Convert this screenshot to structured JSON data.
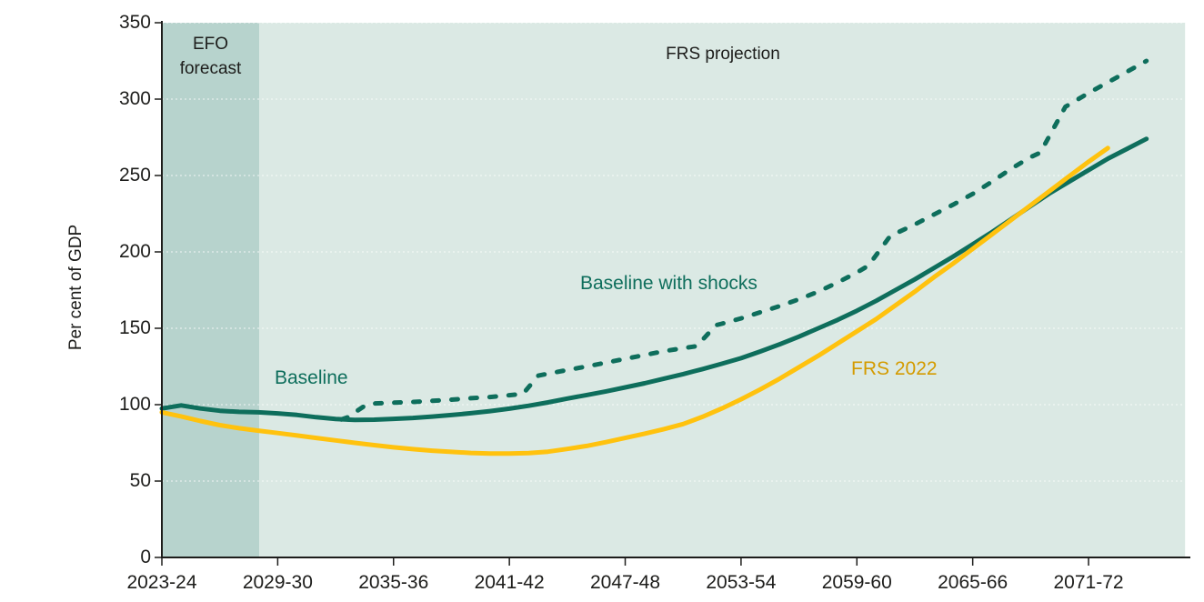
{
  "chart_data": {
    "type": "line",
    "title": "",
    "ylabel": "Per cent of GDP",
    "xlabel": "",
    "ylim": [
      0,
      350
    ],
    "y_ticks": [
      0,
      50,
      100,
      150,
      200,
      250,
      300,
      350
    ],
    "x_ticks": [
      {
        "year": 2023,
        "label": "2023-24"
      },
      {
        "year": 2029,
        "label": "2029-30"
      },
      {
        "year": 2035,
        "label": "2035-36"
      },
      {
        "year": 2041,
        "label": "2041-42"
      },
      {
        "year": 2047,
        "label": "2047-48"
      },
      {
        "year": 2053,
        "label": "2053-54"
      },
      {
        "year": 2059,
        "label": "2059-60"
      },
      {
        "year": 2065,
        "label": "2065-66"
      },
      {
        "year": 2071,
        "label": "2071-72"
      }
    ],
    "grid": "horizontal-dotted-white",
    "legend_position": "inline-labels",
    "regions": [
      {
        "name": "EFO forecast",
        "label_lines": [
          "EFO",
          "forecast"
        ],
        "start_year": 2023,
        "end_year": 2028.05,
        "color": "#b7d3cd"
      },
      {
        "name": "FRS projection",
        "label": "FRS projection",
        "start_year": 2028.05,
        "end_year": 2076,
        "color": "#dbe9e4"
      }
    ],
    "series": [
      {
        "name": "Baseline",
        "style": "solid",
        "color": "#0e6e5c",
        "points": [
          [
            2023,
            97.5
          ],
          [
            2024,
            99.5
          ],
          [
            2025,
            97.5
          ],
          [
            2026,
            96
          ],
          [
            2027,
            95.3
          ],
          [
            2028,
            95
          ],
          [
            2029,
            94.3
          ],
          [
            2030,
            93.3
          ],
          [
            2031,
            91.8
          ],
          [
            2032,
            90.6
          ],
          [
            2033,
            90
          ],
          [
            2034,
            90.2
          ],
          [
            2035,
            90.7
          ],
          [
            2036,
            91.3
          ],
          [
            2037,
            92.2
          ],
          [
            2038,
            93.2
          ],
          [
            2039,
            94.4
          ],
          [
            2040,
            95.8
          ],
          [
            2041,
            97.4
          ],
          [
            2042,
            99.3
          ],
          [
            2043,
            101.5
          ],
          [
            2044,
            104
          ],
          [
            2045,
            106.3
          ],
          [
            2046,
            108.7
          ],
          [
            2047,
            111.3
          ],
          [
            2048,
            114
          ],
          [
            2049,
            117
          ],
          [
            2050,
            120
          ],
          [
            2051,
            123.3
          ],
          [
            2052,
            126.8
          ],
          [
            2053,
            130.4
          ],
          [
            2054,
            134.8
          ],
          [
            2055,
            139.5
          ],
          [
            2056,
            144.5
          ],
          [
            2057,
            150
          ],
          [
            2058,
            155.5
          ],
          [
            2059,
            161.5
          ],
          [
            2060,
            168
          ],
          [
            2061,
            175
          ],
          [
            2062,
            182
          ],
          [
            2063,
            189.5
          ],
          [
            2064,
            197
          ],
          [
            2065,
            205
          ],
          [
            2066,
            213
          ],
          [
            2067,
            221.5
          ],
          [
            2068,
            230
          ],
          [
            2069,
            238.5
          ],
          [
            2070,
            246
          ],
          [
            2071,
            253.5
          ],
          [
            2072,
            261
          ],
          [
            2073,
            267.5
          ],
          [
            2074,
            274
          ]
        ]
      },
      {
        "name": "Baseline with shocks",
        "style": "dashed",
        "color": "#0e6e5c",
        "points": [
          [
            2032.3,
            90.3
          ],
          [
            2032.7,
            92
          ],
          [
            2033,
            95
          ],
          [
            2033.6,
            100
          ],
          [
            2034,
            100.8
          ],
          [
            2035,
            101.3
          ],
          [
            2036,
            101.8
          ],
          [
            2037,
            102.5
          ],
          [
            2038,
            103.3
          ],
          [
            2039,
            104.2
          ],
          [
            2040,
            105
          ],
          [
            2041,
            106.2
          ],
          [
            2041.7,
            107
          ],
          [
            2042.5,
            119
          ],
          [
            2043,
            120.3
          ],
          [
            2044,
            122.7
          ],
          [
            2045,
            125
          ],
          [
            2046,
            127.5
          ],
          [
            2047,
            130
          ],
          [
            2048,
            132.5
          ],
          [
            2049,
            135
          ],
          [
            2050,
            137
          ],
          [
            2050.7,
            138.3
          ],
          [
            2051.7,
            152
          ],
          [
            2052,
            153
          ],
          [
            2053,
            156.5
          ],
          [
            2054,
            160.5
          ],
          [
            2055,
            164.5
          ],
          [
            2056,
            169
          ],
          [
            2057,
            174
          ],
          [
            2058,
            180
          ],
          [
            2059,
            186.5
          ],
          [
            2059.6,
            191
          ],
          [
            2060.7,
            210
          ],
          [
            2061,
            212
          ],
          [
            2062,
            218
          ],
          [
            2063,
            224.5
          ],
          [
            2064,
            231
          ],
          [
            2065,
            238
          ],
          [
            2066,
            246
          ],
          [
            2067,
            254.5
          ],
          [
            2068,
            262
          ],
          [
            2068.5,
            265
          ],
          [
            2069.8,
            295
          ],
          [
            2070,
            296.5
          ],
          [
            2071,
            304
          ],
          [
            2072,
            311
          ],
          [
            2073,
            318
          ],
          [
            2074,
            325
          ]
        ]
      },
      {
        "name": "FRS 2022",
        "style": "solid",
        "color": "#ffc20e",
        "points": [
          [
            2023,
            95
          ],
          [
            2024,
            92.3
          ],
          [
            2025,
            89.3
          ],
          [
            2026,
            86.6
          ],
          [
            2027,
            84.6
          ],
          [
            2028,
            83
          ],
          [
            2029,
            81.4
          ],
          [
            2030,
            79.8
          ],
          [
            2031,
            78.2
          ],
          [
            2032,
            76.6
          ],
          [
            2033,
            75
          ],
          [
            2034,
            73.5
          ],
          [
            2035,
            72.1
          ],
          [
            2036,
            70.9
          ],
          [
            2037,
            69.9
          ],
          [
            2038,
            69.1
          ],
          [
            2039,
            68.4
          ],
          [
            2040,
            68
          ],
          [
            2041,
            68
          ],
          [
            2042,
            68.3
          ],
          [
            2043,
            69.2
          ],
          [
            2044,
            71
          ],
          [
            2045,
            73
          ],
          [
            2046,
            75.5
          ],
          [
            2047,
            78.2
          ],
          [
            2048,
            81
          ],
          [
            2049,
            84
          ],
          [
            2050,
            87.3
          ],
          [
            2051,
            92
          ],
          [
            2052,
            97.5
          ],
          [
            2053,
            103.5
          ],
          [
            2054,
            110
          ],
          [
            2055,
            117
          ],
          [
            2056,
            124.5
          ],
          [
            2057,
            132
          ],
          [
            2058,
            140
          ],
          [
            2059,
            148
          ],
          [
            2060,
            156
          ],
          [
            2061,
            165
          ],
          [
            2062,
            174
          ],
          [
            2063,
            183.5
          ],
          [
            2064,
            192.5
          ],
          [
            2065,
            202
          ],
          [
            2066,
            211.5
          ],
          [
            2067,
            221
          ],
          [
            2068,
            230.5
          ],
          [
            2069,
            240
          ],
          [
            2070,
            249.5
          ],
          [
            2071,
            259
          ],
          [
            2072,
            268
          ]
        ]
      }
    ],
    "colors": {
      "teal_line": "#0e6e5c",
      "yellow_line": "#ffc20e",
      "yellow_label": "#d49b00",
      "efo_band": "#b7d3cd",
      "frs_band": "#dbe9e4",
      "axis": "#1d1d1b",
      "gridline": "#ffffff"
    }
  }
}
